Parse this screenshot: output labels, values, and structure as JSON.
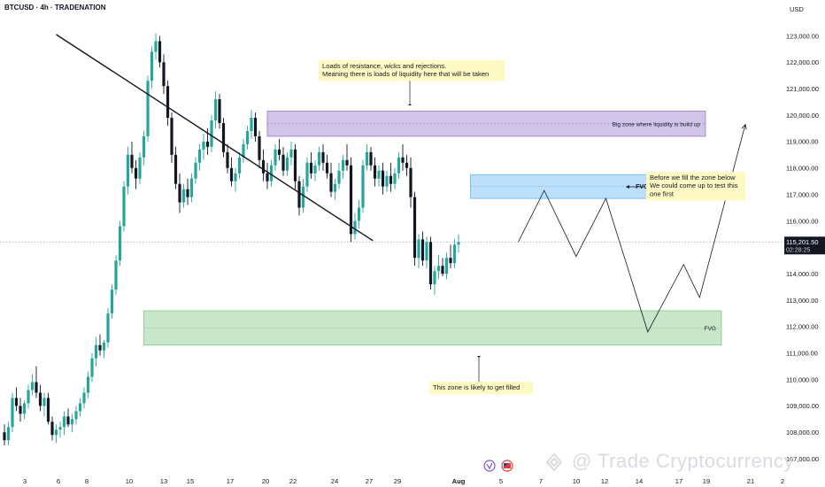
{
  "header": {
    "symbol_title": "BTCUSD · 4h · TRADENATION",
    "currency": "USD"
  },
  "watermark": "@ Trade Cryptocurrency",
  "colors": {
    "up": "#26a69a",
    "down": "#131722",
    "resistance_zone": "#b39ddb",
    "fvg_upper": "#90caf9",
    "fvg_lower": "#a5d6a7",
    "note_bg": "#fff9c4",
    "trendline": "#131722"
  },
  "chart_data": {
    "type": "candlestick",
    "title": "BTCUSD · 4h · TRADENATION",
    "ylabel": "USD",
    "ylim": [
      106700,
      123500
    ],
    "y_ticks": [
      "123,000.00",
      "122,000.00",
      "121,000.00",
      "120,000.00",
      "119,000.00",
      "118,000.00",
      "117,000.00",
      "116,000.00",
      "115,000.00",
      "114,000.00",
      "113,000.00",
      "112,000.00",
      "111,000.00",
      "110,000.00",
      "109,000.00",
      "108,000.00",
      "107,000.00"
    ],
    "x_ticks": [
      "3",
      "6",
      "8",
      "10",
      "13",
      "15",
      "17",
      "20",
      "22",
      "24",
      "27",
      "29",
      "Aug",
      "5",
      "7",
      "10",
      "12",
      "14",
      "17",
      "19",
      "21",
      "2"
    ],
    "current_price": {
      "label": "115,201.50",
      "countdown": "02:28:25",
      "value": 115201.5
    },
    "candles": [
      [
        108000,
        108300,
        107500,
        107700
      ],
      [
        107700,
        108400,
        107500,
        108200
      ],
      [
        108200,
        109500,
        108000,
        109300
      ],
      [
        109300,
        109700,
        108800,
        109000
      ],
      [
        109000,
        109300,
        108400,
        108700
      ],
      [
        108700,
        109200,
        108500,
        109100
      ],
      [
        109100,
        109800,
        108900,
        109600
      ],
      [
        109600,
        110200,
        109400,
        109900
      ],
      [
        109900,
        110500,
        109300,
        109500
      ],
      [
        109500,
        109800,
        108800,
        109000
      ],
      [
        109000,
        109500,
        108600,
        109300
      ],
      [
        109300,
        109500,
        108300,
        108400
      ],
      [
        108400,
        108600,
        107700,
        107900
      ],
      [
        107900,
        108300,
        107600,
        108100
      ],
      [
        108100,
        108400,
        107800,
        108200
      ],
      [
        108200,
        108800,
        107900,
        108600
      ],
      [
        108600,
        108900,
        108200,
        108300
      ],
      [
        108300,
        108700,
        108000,
        108500
      ],
      [
        108500,
        109000,
        108300,
        108800
      ],
      [
        108800,
        109300,
        108600,
        109100
      ],
      [
        109100,
        109700,
        108900,
        109500
      ],
      [
        109500,
        110300,
        109300,
        110100
      ],
      [
        110100,
        111000,
        109900,
        110800
      ],
      [
        110800,
        111600,
        110500,
        111300
      ],
      [
        111300,
        111700,
        110900,
        111100
      ],
      [
        111100,
        111500,
        110800,
        111400
      ],
      [
        111400,
        112700,
        111200,
        112500
      ],
      [
        112500,
        113600,
        112300,
        113400
      ],
      [
        113400,
        114700,
        113200,
        114500
      ],
      [
        114500,
        116000,
        114300,
        115800
      ],
      [
        115800,
        117500,
        115600,
        117300
      ],
      [
        117300,
        118800,
        117000,
        118500
      ],
      [
        118500,
        119000,
        117800,
        118000
      ],
      [
        118000,
        118300,
        117200,
        117600
      ],
      [
        117600,
        118600,
        117400,
        118400
      ],
      [
        118400,
        119400,
        118100,
        119200
      ],
      [
        119200,
        121500,
        119000,
        121300
      ],
      [
        121300,
        122600,
        121000,
        122400
      ],
      [
        122400,
        123100,
        122100,
        122800
      ],
      [
        122800,
        123000,
        121800,
        122000
      ],
      [
        122000,
        122300,
        120800,
        121100
      ],
      [
        121100,
        121300,
        119600,
        119900
      ],
      [
        119900,
        120100,
        118200,
        118500
      ],
      [
        118500,
        118800,
        117200,
        117400
      ],
      [
        117400,
        117800,
        116300,
        116700
      ],
      [
        116700,
        117400,
        116500,
        117200
      ],
      [
        117200,
        117600,
        116600,
        116900
      ],
      [
        116900,
        117800,
        116700,
        117600
      ],
      [
        117600,
        118400,
        117400,
        118200
      ],
      [
        118200,
        118900,
        117900,
        118700
      ],
      [
        118700,
        119300,
        118300,
        119000
      ],
      [
        119000,
        119500,
        118500,
        118800
      ],
      [
        118800,
        120000,
        118600,
        119800
      ],
      [
        119800,
        120900,
        119500,
        120600
      ],
      [
        120600,
        120800,
        119500,
        119700
      ],
      [
        119700,
        119900,
        118400,
        118600
      ],
      [
        118600,
        118900,
        117800,
        118000
      ],
      [
        118000,
        118400,
        117300,
        117500
      ],
      [
        117500,
        118000,
        117100,
        117800
      ],
      [
        117800,
        118600,
        117600,
        118400
      ],
      [
        118400,
        119100,
        118200,
        118900
      ],
      [
        118900,
        119600,
        118700,
        119400
      ],
      [
        119400,
        120200,
        119100,
        119900
      ],
      [
        119900,
        120100,
        119000,
        119200
      ],
      [
        119200,
        119400,
        118000,
        118300
      ],
      [
        118300,
        118700,
        117500,
        117800
      ],
      [
        117800,
        118200,
        117200,
        117500
      ],
      [
        117500,
        118300,
        117300,
        118100
      ],
      [
        118100,
        118900,
        117900,
        118700
      ],
      [
        118700,
        119100,
        118300,
        118500
      ],
      [
        118500,
        118800,
        117700,
        117900
      ],
      [
        117900,
        118600,
        117700,
        118400
      ],
      [
        118400,
        119000,
        118100,
        118700
      ],
      [
        118700,
        118900,
        117200,
        117500
      ],
      [
        117500,
        117700,
        116200,
        116500
      ],
      [
        116500,
        117600,
        116300,
        117300
      ],
      [
        117300,
        118400,
        117100,
        118200
      ],
      [
        118200,
        118600,
        117600,
        117800
      ],
      [
        117800,
        118300,
        117500,
        118100
      ],
      [
        118100,
        118800,
        117900,
        118600
      ],
      [
        118600,
        118900,
        117900,
        118200
      ],
      [
        118200,
        118500,
        117600,
        117800
      ],
      [
        117800,
        118200,
        116900,
        117100
      ],
      [
        117100,
        117600,
        116800,
        117400
      ],
      [
        117400,
        118200,
        117200,
        117900
      ],
      [
        117900,
        118500,
        117600,
        118300
      ],
      [
        118300,
        118900,
        117900,
        118100
      ],
      [
        118100,
        118400,
        115200,
        115500
      ],
      [
        115500,
        116300,
        115300,
        116000
      ],
      [
        116000,
        116800,
        115700,
        116500
      ],
      [
        116500,
        118300,
        116300,
        118100
      ],
      [
        118100,
        118900,
        117900,
        118600
      ],
      [
        118600,
        118800,
        117900,
        118100
      ],
      [
        118100,
        118400,
        117300,
        117600
      ],
      [
        117600,
        118100,
        117300,
        117900
      ],
      [
        117900,
        118200,
        117000,
        117300
      ],
      [
        117300,
        117900,
        117100,
        117700
      ],
      [
        117700,
        118200,
        117100,
        117400
      ],
      [
        117400,
        118000,
        117200,
        117800
      ],
      [
        117800,
        118600,
        117600,
        118400
      ],
      [
        118400,
        118900,
        117900,
        118200
      ],
      [
        118200,
        118500,
        117700,
        118000
      ],
      [
        118000,
        118400,
        116500,
        116900
      ],
      [
        116900,
        117100,
        114300,
        114600
      ],
      [
        114600,
        115500,
        114200,
        115300
      ],
      [
        115300,
        115600,
        114300,
        114500
      ],
      [
        114500,
        115400,
        114200,
        115200
      ],
      [
        115200,
        115400,
        113400,
        113600
      ],
      [
        113600,
        114300,
        113200,
        114100
      ],
      [
        114100,
        114700,
        113800,
        114300
      ],
      [
        114300,
        114600,
        113900,
        114000
      ],
      [
        114000,
        114800,
        113800,
        114600
      ],
      [
        114600,
        115100,
        114200,
        114400
      ],
      [
        114400,
        115300,
        114200,
        115100
      ],
      [
        115100,
        115500,
        114800,
        115200
      ]
    ],
    "trendline": {
      "from": [
        13,
        123050
      ],
      "to": [
        92.5,
        115250
      ]
    },
    "zones": [
      {
        "name": "resistance",
        "label": "Big zone where liquidity is build up",
        "y_top": 120150,
        "y_bottom": 119200,
        "x_from": 66,
        "x_to": 176
      },
      {
        "name": "fvg-upper",
        "label": "FVG",
        "y_top": 117750,
        "y_bottom": 116850,
        "x_from": 117,
        "x_to": 163
      },
      {
        "name": "fvg-lower",
        "label": "FVG",
        "y_top": 112600,
        "y_bottom": 111300,
        "x_from": 35,
        "x_to": 180
      }
    ],
    "projection_path": [
      [
        129,
        115201
      ],
      [
        135.5,
        117150
      ],
      [
        143.5,
        114650
      ],
      [
        151,
        116850
      ],
      [
        161.5,
        111800
      ],
      [
        170.5,
        114350
      ],
      [
        174.5,
        113100
      ],
      [
        186,
        119650
      ]
    ],
    "annotations": [
      {
        "name": "liquidity-note",
        "lines": [
          "Loads of resistance, wicks and rejections.",
          "Meaning there is loads of liquidity here that will be taken"
        ]
      },
      {
        "name": "zone-note",
        "lines": [
          "Before we fill the zone below",
          "We could come up to test this",
          "one first"
        ]
      },
      {
        "name": "fill-note",
        "lines": [
          "This zone is likely to get filled"
        ]
      }
    ]
  }
}
